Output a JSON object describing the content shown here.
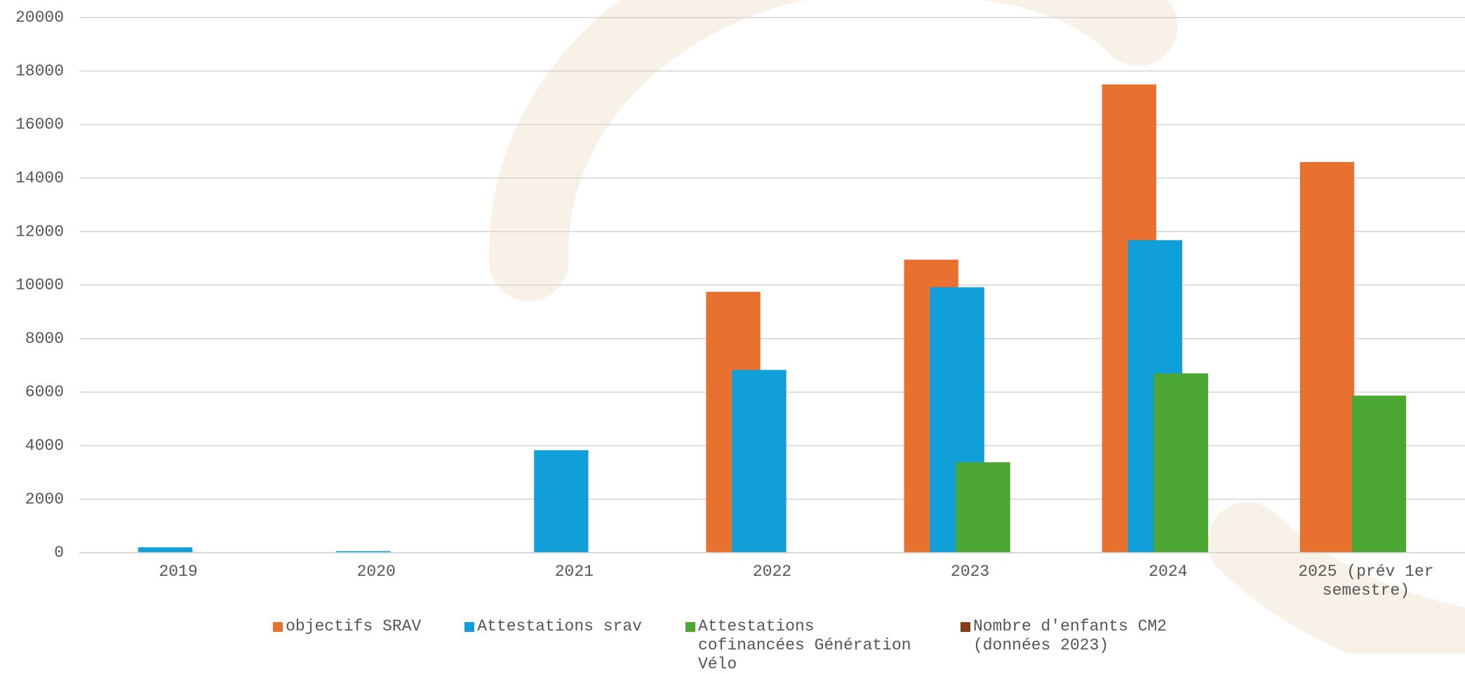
{
  "chart_data": {
    "type": "bar",
    "categories": [
      "2019",
      "2020",
      "2021",
      "2022",
      "2023",
      "2024",
      "2025 (prév 1er semestre)"
    ],
    "series": [
      {
        "name": "objectifs SRAV",
        "color": "#e8712f",
        "values": [
          null,
          null,
          null,
          9750,
          10950,
          17500,
          14600
        ]
      },
      {
        "name": "Attestations srav",
        "color": "#109fd8",
        "values": [
          200,
          60,
          3830,
          6830,
          9920,
          11680,
          null
        ]
      },
      {
        "name": "Attestations cofinancées Génération Vélo",
        "color": "#4ba731",
        "values": [
          null,
          null,
          null,
          null,
          3380,
          6700,
          5870
        ]
      },
      {
        "name": "Nombre d'enfants CM2 (données 2023)",
        "color": "#8b3a14",
        "values": [
          null,
          null,
          null,
          null,
          null,
          null,
          null
        ]
      }
    ],
    "ylim": [
      0,
      20000
    ],
    "yticks": [
      0,
      2000,
      4000,
      6000,
      8000,
      10000,
      12000,
      14000,
      16000,
      18000,
      20000
    ],
    "grid": true,
    "legend": "bottom"
  }
}
